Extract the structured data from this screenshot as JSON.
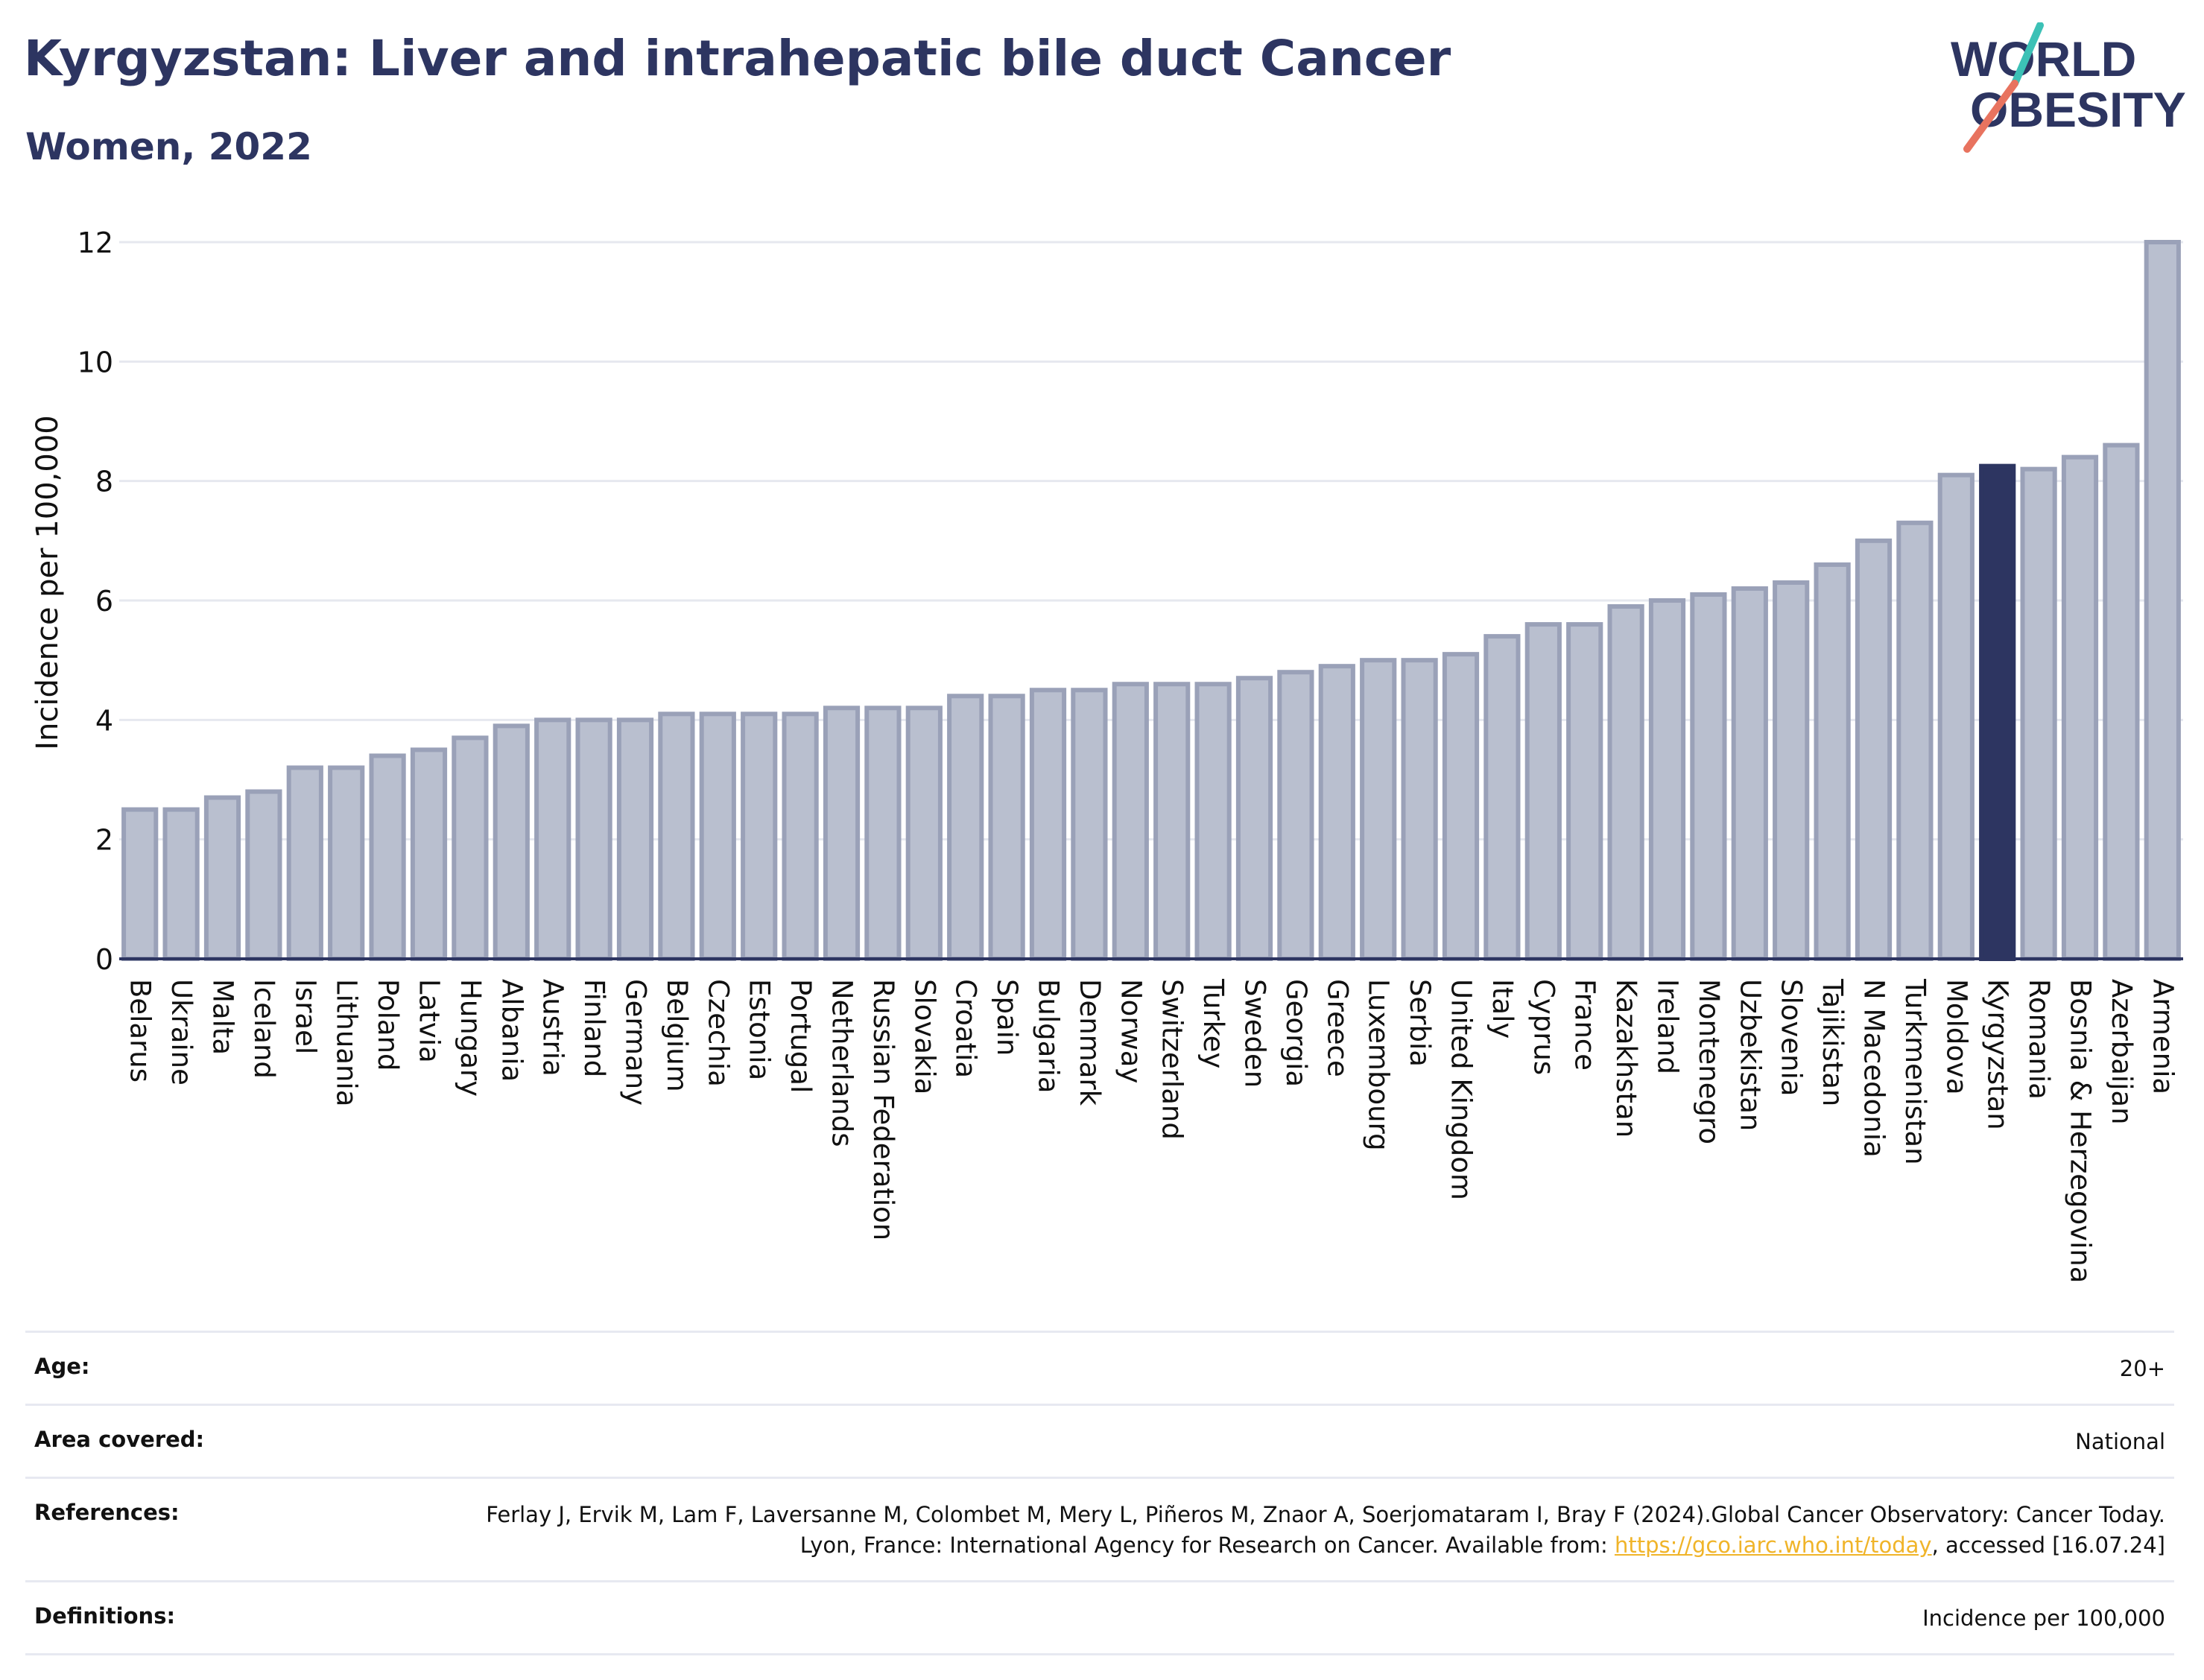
{
  "header": {
    "title": "Kyrgyzstan: Liver and intrahepatic bile duct Cancer",
    "subtitle": "Women, 2022"
  },
  "logo": {
    "line1": "WORLD",
    "line2": "OBESITY",
    "text_color": "#2d3561",
    "accent_teal": "#3cc1b6",
    "accent_coral": "#e8735f"
  },
  "chart_data": {
    "type": "bar",
    "ylabel": "Incidence per 100,000",
    "ylim": [
      0,
      12
    ],
    "yticks": [
      0,
      2,
      4,
      6,
      8,
      10,
      12
    ],
    "grid": true,
    "highlight": "Kyrgyzstan",
    "colors": {
      "bar": "#b9bfcf",
      "bar_edge": "#9aa1b8",
      "highlight": "#2d3561",
      "grid": "#e6e8ef",
      "axis": "#2d3561"
    },
    "categories": [
      "Belarus",
      "Ukraine",
      "Malta",
      "Iceland",
      "Israel",
      "Lithuania",
      "Poland",
      "Latvia",
      "Hungary",
      "Albania",
      "Austria",
      "Finland",
      "Germany",
      "Belgium",
      "Czechia",
      "Estonia",
      "Portugal",
      "Netherlands",
      "Russian Federation",
      "Slovakia",
      "Croatia",
      "Spain",
      "Bulgaria",
      "Denmark",
      "Norway",
      "Switzerland",
      "Turkey",
      "Sweden",
      "Georgia",
      "Greece",
      "Luxembourg",
      "Serbia",
      "United Kingdom",
      "Italy",
      "Cyprus",
      "France",
      "Kazakhstan",
      "Ireland",
      "Montenegro",
      "Uzbekistan",
      "Slovenia",
      "Tajikistan",
      "N Macedonia",
      "Turkmenistan",
      "Moldova",
      "Kyrgyzstan",
      "Romania",
      "Bosnia & Herzegovina",
      "Azerbaijan",
      "Armenia"
    ],
    "values": [
      2.5,
      2.5,
      2.7,
      2.8,
      3.2,
      3.2,
      3.4,
      3.5,
      3.7,
      3.9,
      4.0,
      4.0,
      4.0,
      4.1,
      4.1,
      4.1,
      4.1,
      4.2,
      4.2,
      4.2,
      4.4,
      4.4,
      4.5,
      4.5,
      4.6,
      4.6,
      4.6,
      4.7,
      4.8,
      4.9,
      5.0,
      5.0,
      5.1,
      5.4,
      5.6,
      5.6,
      5.9,
      6.0,
      6.1,
      6.2,
      6.3,
      6.6,
      7.0,
      7.3,
      8.1,
      8.25,
      8.2,
      8.4,
      8.6,
      12.0
    ]
  },
  "info_table": {
    "age_label": "Age:",
    "age_value": "20+",
    "area_label": "Area covered:",
    "area_value": "National",
    "references_label": "References:",
    "references_text_1": "Ferlay J, Ervik M, Lam F, Laversanne M, Colombet M, Mery L, Piñeros M, Znaor A, Soerjomataram I, Bray F (2024).Global Cancer Observatory: Cancer Today. Lyon, France: International Agency for Research on Cancer. Available from: ",
    "references_link": "https://gco.iarc.who.int/today",
    "references_text_2": ", accessed [16.07.24]",
    "definitions_label": "Definitions:",
    "definitions_value": "Incidence per 100,000"
  }
}
